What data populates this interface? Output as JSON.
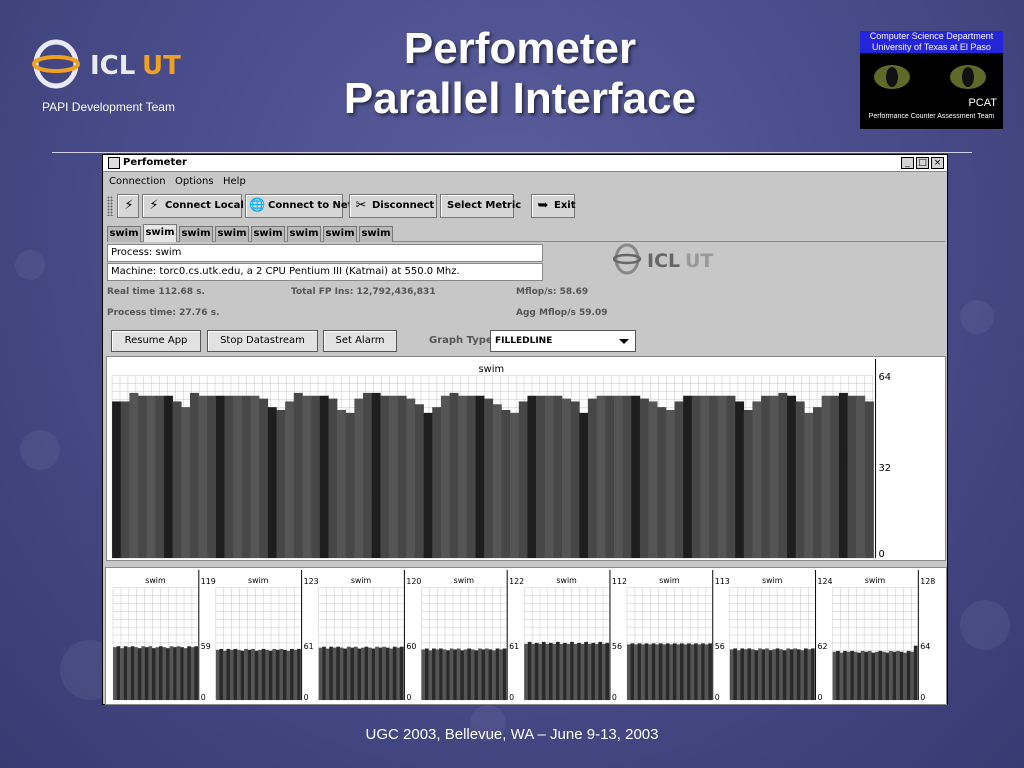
{
  "slide": {
    "title_line1": "Perfometer",
    "title_line2": "Parallel Interface",
    "team_label": "PAPI Development Team",
    "logo_text": "ICL",
    "logo_mark": "UT",
    "pcat_dept_line1": "Computer Science Department",
    "pcat_dept_line2": "University of Texas at El Paso",
    "pcat_name": "PCAT",
    "pcat_sub": "Performance Counter Assessment Team",
    "footer": "UGC 2003, Bellevue, WA – June 9-13, 2003"
  },
  "window": {
    "title": "Perfometer",
    "controls": {
      "minimize": "_",
      "maximize": "□",
      "close": "×"
    }
  },
  "menu": [
    "Connection",
    "Options",
    "Help"
  ],
  "toolbar": {
    "connect_local": "Connect Local",
    "connect_net": "Connect to Net",
    "disconnect": "Disconnect",
    "select_metric": "Select Metric",
    "exit": "Exit"
  },
  "tabs": [
    "swim",
    "swim",
    "swim",
    "swim",
    "swim",
    "swim",
    "swim",
    "swim"
  ],
  "info": {
    "process": "Process: swim",
    "machine": "Machine: torc0.cs.utk.edu, a 2 CPU Pentium III (Katmai) at 550.0 Mhz."
  },
  "stats": {
    "real_time": "Real time  112.68  s.",
    "process_time": "Process time:  27.76  s.",
    "total_fp": "Total FP Ins:  12,792,436,831",
    "mflops": "Mflop/s:  58.69",
    "agg_mflops": "Agg Mflop/s  59.09"
  },
  "actions": {
    "resume": "Resume App",
    "stop": "Stop Datastream",
    "alarm": "Set Alarm",
    "graph_type_label": "Graph Type:",
    "graph_type_value": "FILLEDLINE"
  },
  "icons": {
    "connect_local": "lightning-icon",
    "connect_net": "globe-icon",
    "disconnect": "unplug-icon",
    "exit": "exit-icon"
  },
  "colors": {
    "slide_bg": "#4a4e8c",
    "pcat_banner": "#2424d8",
    "window_bg": "#c7c7c7",
    "bar_dark": "#1e1e1e",
    "bar_mid": "#555555"
  },
  "chart_data": [
    {
      "type": "bar",
      "title": "swim",
      "ylim": [
        0,
        64
      ],
      "y_ticks": [
        64,
        32,
        0
      ],
      "grid": true,
      "values": [
        55,
        55,
        58,
        57,
        57,
        57,
        57,
        55,
        53,
        58,
        57,
        57,
        57,
        57,
        57,
        57,
        57,
        56,
        53,
        52,
        55,
        58,
        57,
        57,
        57,
        56,
        52,
        51,
        56,
        58,
        58,
        57,
        57,
        57,
        56,
        54,
        51,
        53,
        57,
        58,
        57,
        57,
        57,
        56,
        54,
        52,
        51,
        55,
        57,
        57,
        57,
        57,
        56,
        55,
        51,
        56,
        57,
        57,
        57,
        57,
        57,
        56,
        55,
        53,
        52,
        55,
        57,
        57,
        57,
        57,
        57,
        57,
        55,
        52,
        55,
        57,
        57,
        58,
        57,
        55,
        51,
        53,
        57,
        57,
        58,
        57,
        57,
        55
      ]
    },
    {
      "type": "bar",
      "title": "swim",
      "ylim": [
        0,
        119
      ],
      "y_ticks": [
        "119",
        "59",
        "0"
      ],
      "values": [
        56,
        57,
        55,
        57,
        56,
        57,
        56,
        55,
        57,
        56,
        57,
        55,
        56,
        57,
        56,
        55,
        57,
        56,
        57,
        56,
        55,
        57,
        56,
        57
      ]
    },
    {
      "type": "bar",
      "title": "swim",
      "ylim": [
        0,
        123
      ],
      "y_ticks": [
        "123",
        "61",
        "0"
      ],
      "values": [
        55,
        56,
        54,
        56,
        55,
        56,
        55,
        54,
        56,
        55,
        56,
        54,
        55,
        56,
        55,
        54,
        56,
        55,
        56,
        55,
        54,
        56,
        55,
        56
      ]
    },
    {
      "type": "bar",
      "title": "swim",
      "ylim": [
        0,
        120
      ],
      "y_ticks": [
        "120",
        "60",
        "0"
      ],
      "values": [
        56,
        57,
        55,
        57,
        56,
        57,
        56,
        55,
        57,
        56,
        57,
        55,
        56,
        57,
        56,
        55,
        57,
        56,
        57,
        56,
        55,
        57,
        56,
        57
      ]
    },
    {
      "type": "bar",
      "title": "swim",
      "ylim": [
        0,
        122
      ],
      "y_ticks": [
        "122",
        "61",
        "0"
      ],
      "values": [
        55,
        56,
        54,
        56,
        55,
        56,
        55,
        54,
        56,
        55,
        56,
        54,
        55,
        56,
        55,
        54,
        56,
        55,
        56,
        55,
        54,
        56,
        55,
        56
      ]
    },
    {
      "type": "bar",
      "title": "swim",
      "ylim": [
        0,
        112
      ],
      "y_ticks": [
        "112",
        "56",
        "0"
      ],
      "values": [
        56,
        58,
        56,
        57,
        56,
        58,
        56,
        57,
        56,
        58,
        56,
        57,
        56,
        58,
        56,
        57,
        56,
        58,
        56,
        57,
        56,
        58,
        56,
        57
      ]
    },
    {
      "type": "bar",
      "title": "swim",
      "ylim": [
        0,
        113
      ],
      "y_ticks": [
        "113",
        "56",
        "0"
      ],
      "values": [
        56,
        57,
        56,
        57,
        56,
        57,
        56,
        57,
        56,
        57,
        56,
        57,
        56,
        57,
        56,
        57,
        56,
        57,
        56,
        57,
        56,
        57,
        56,
        57
      ]
    },
    {
      "type": "bar",
      "title": "swim",
      "ylim": [
        0,
        124
      ],
      "y_ticks": [
        "124",
        "62",
        "0"
      ],
      "values": [
        56,
        57,
        55,
        57,
        56,
        57,
        56,
        55,
        57,
        56,
        57,
        55,
        56,
        57,
        56,
        55,
        57,
        56,
        57,
        56,
        55,
        57,
        56,
        57
      ]
    },
    {
      "type": "bar",
      "title": "swim",
      "ylim": [
        0,
        128
      ],
      "y_ticks": [
        "128",
        "64",
        "0"
      ],
      "values": [
        55,
        56,
        54,
        56,
        55,
        56,
        55,
        54,
        56,
        55,
        56,
        54,
        55,
        56,
        55,
        54,
        56,
        55,
        56,
        55,
        54,
        56,
        55,
        62
      ]
    }
  ]
}
